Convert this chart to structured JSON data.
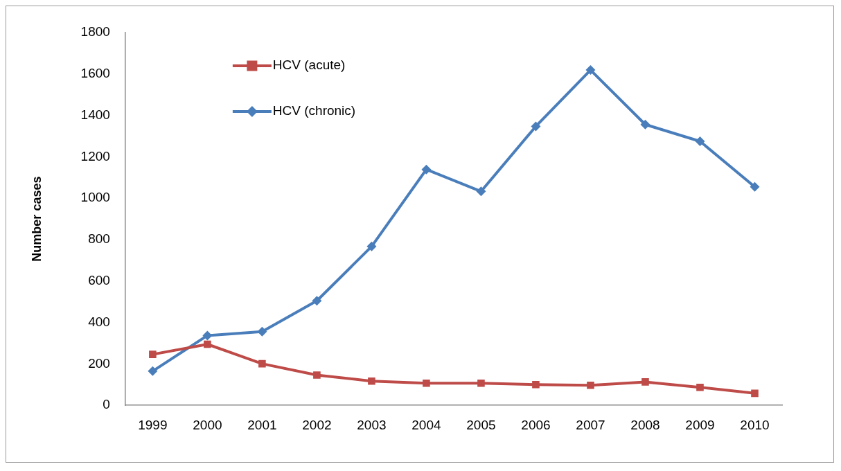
{
  "chart_data": {
    "type": "line",
    "ylabel": "Number cases",
    "categories": [
      "1999",
      "2000",
      "2001",
      "2002",
      "2003",
      "2004",
      "2005",
      "2006",
      "2007",
      "2008",
      "2009",
      "2010"
    ],
    "series": [
      {
        "name": "HCV (acute)",
        "color": "#be4b48",
        "marker": "square",
        "values": [
          246,
          295,
          201,
          146,
          117,
          107,
          107,
          100,
          97,
          113,
          87,
          58
        ]
      },
      {
        "name": "HCV (chronic)",
        "color": "#4a7ebb",
        "marker": "diamond",
        "values": [
          165,
          337,
          356,
          505,
          767,
          1139,
          1033,
          1347,
          1619,
          1356,
          1275,
          1055
        ]
      }
    ],
    "ylim": [
      0,
      1800
    ],
    "yticks": [
      0,
      200,
      400,
      600,
      800,
      1000,
      1200,
      1400,
      1600,
      1800
    ],
    "grid": false,
    "legend": "top left",
    "line_style": "solid"
  }
}
